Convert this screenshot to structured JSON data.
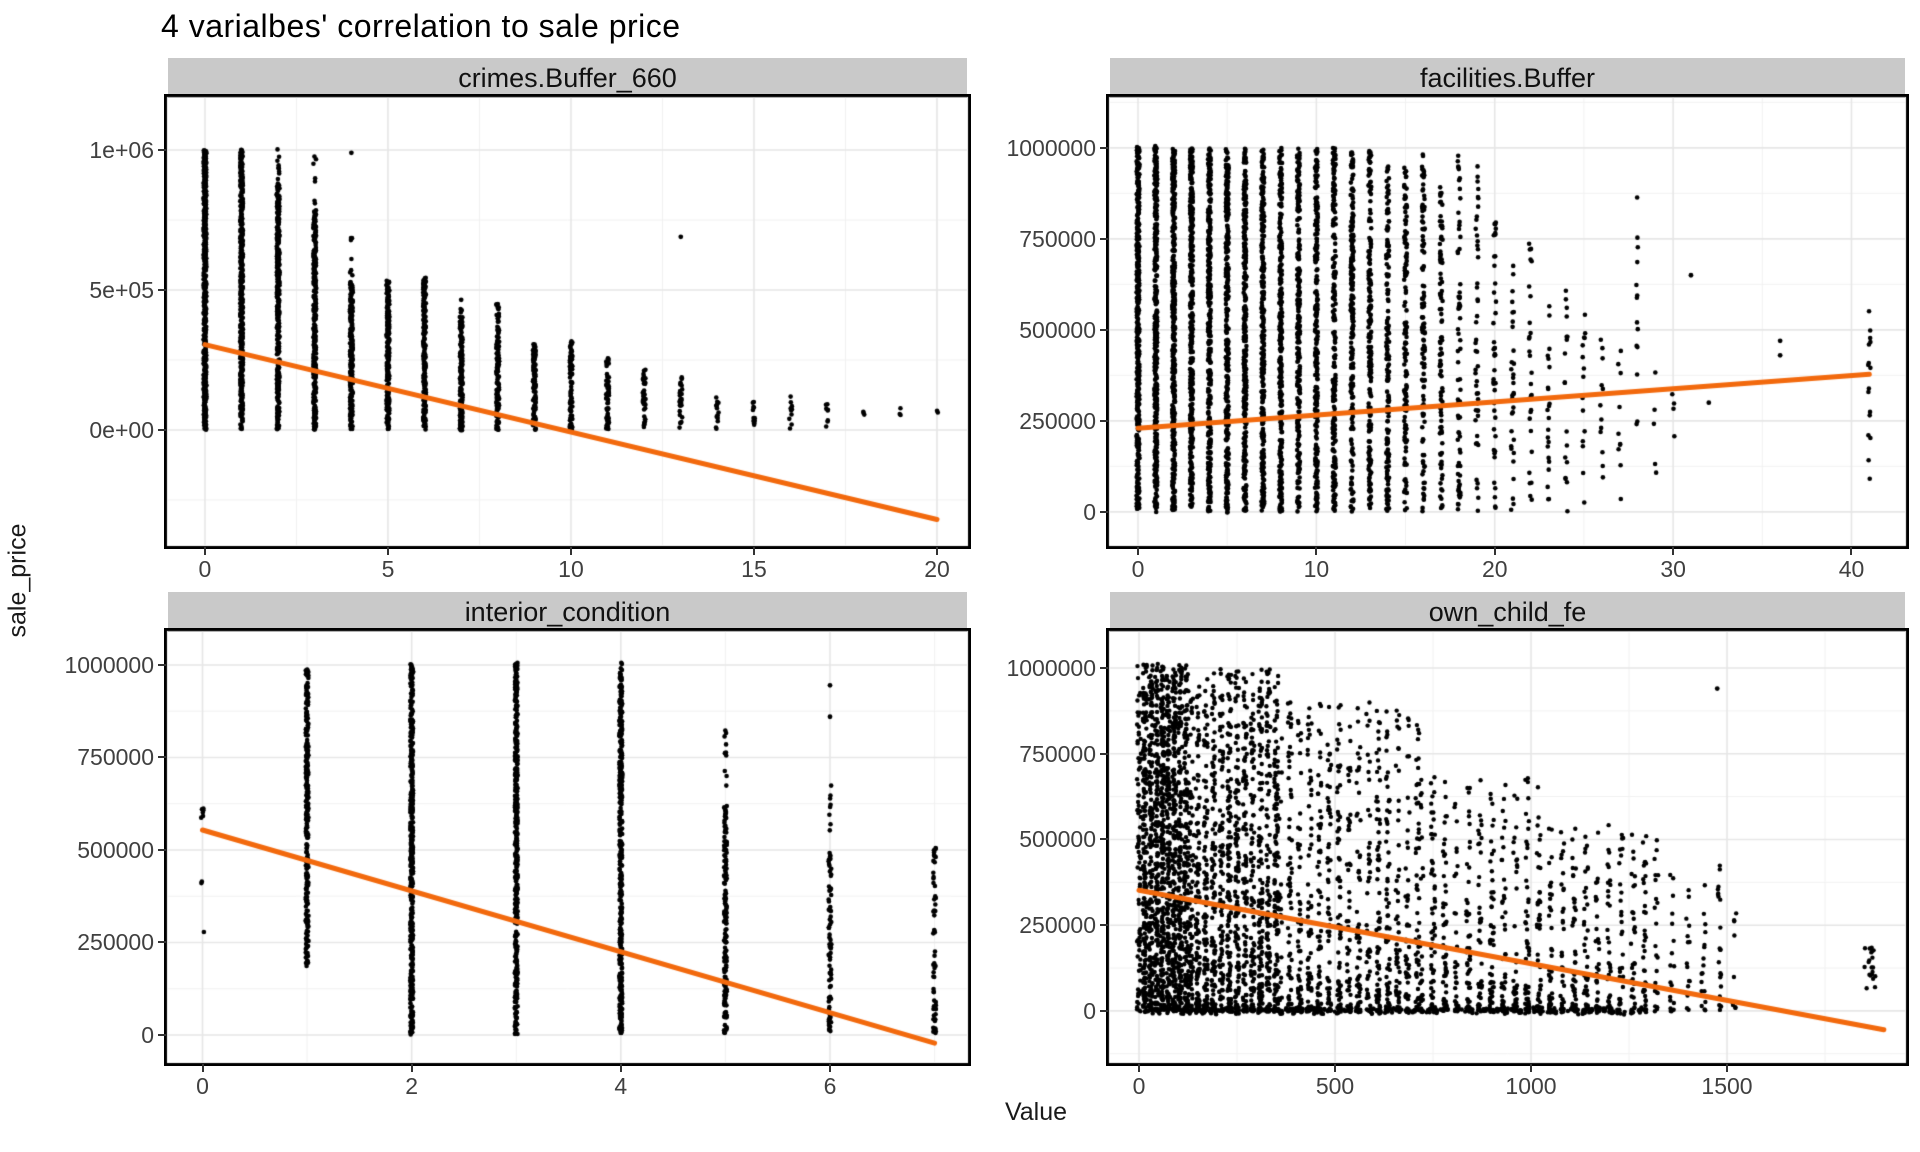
{
  "title": "4 varialbes' correlation to sale price",
  "axes": {
    "y_label": "sale_price",
    "x_label": "Value"
  },
  "colors": {
    "trend": "#F2690D",
    "point": "#000000",
    "strip_bg": "#C9C9C9",
    "grid_major": "#E6E6E6",
    "grid_minor": "#F1F1F1",
    "panel_border": "#000000",
    "tick_text": "#404040"
  },
  "chart_data": [
    {
      "type": "scatter",
      "title": "crimes.Buffer_660",
      "xlabel": "Value",
      "ylabel": "sale_price",
      "grid": true,
      "legend": "none",
      "x_ticks": {
        "values": [
          0,
          5,
          10,
          15,
          20
        ],
        "labels": [
          "0",
          "5",
          "10",
          "15",
          "20"
        ]
      },
      "y_ticks": {
        "values": [
          0,
          500000,
          1000000
        ],
        "labels": [
          "0e+00",
          "5e+05",
          "1e+06"
        ]
      },
      "xlim": [
        -1.01,
        20.82
      ],
      "ylim": [
        -411000,
        1186000
      ],
      "trend": {
        "x0": 0,
        "y0": 305000,
        "x1": 20,
        "y1": -320000
      },
      "columns": [
        [
          0,
          0,
          1000000,
          520
        ],
        [
          1,
          0,
          1000000,
          430
        ],
        [
          2,
          0,
          880000,
          340
        ],
        [
          2,
          880000,
          1005000,
          10
        ],
        [
          3,
          0,
          780000,
          290
        ],
        [
          3,
          780000,
          990000,
          8
        ],
        [
          4,
          0,
          530000,
          250
        ],
        [
          4,
          530000,
          700000,
          7
        ],
        [
          5,
          0,
          535000,
          215
        ],
        [
          6,
          0,
          545000,
          195
        ],
        [
          7,
          0,
          430000,
          165
        ],
        [
          8,
          0,
          450000,
          135
        ],
        [
          9,
          0,
          310000,
          115
        ],
        [
          10,
          0,
          315000,
          88
        ],
        [
          11,
          0,
          265000,
          58
        ],
        [
          12,
          0,
          215000,
          40
        ],
        [
          13,
          0,
          190000,
          28
        ],
        [
          14,
          0,
          115000,
          14
        ],
        [
          15,
          0,
          115000,
          12
        ],
        [
          16,
          0,
          130000,
          10
        ],
        [
          17,
          0,
          95000,
          8
        ],
        [
          18,
          45000,
          75000,
          3
        ],
        [
          19,
          45000,
          85000,
          3
        ],
        [
          20,
          55000,
          70000,
          2
        ]
      ],
      "extra_points": [
        [
          4,
          990000
        ],
        [
          7,
          465000
        ],
        [
          13,
          690000
        ]
      ]
    },
    {
      "type": "scatter",
      "title": "facilities.Buffer",
      "xlabel": "Value",
      "ylabel": "sale_price",
      "grid": true,
      "legend": "none",
      "x_ticks": {
        "values": [
          0,
          10,
          20,
          30,
          40
        ],
        "labels": [
          "0",
          "10",
          "20",
          "30",
          "40"
        ]
      },
      "y_ticks": {
        "values": [
          0,
          250000,
          500000,
          750000,
          1000000
        ],
        "labels": [
          "0",
          "250000",
          "500000",
          "750000",
          "1000000"
        ]
      },
      "xlim": [
        -1.57,
        43.0
      ],
      "ylim": [
        -91000,
        1137000
      ],
      "trend": {
        "x0": 0,
        "y0": 230000,
        "x1": 41,
        "y1": 378000
      },
      "columns": [
        [
          0,
          0,
          1005000,
          420
        ],
        [
          1,
          0,
          1005000,
          400
        ],
        [
          2,
          0,
          1000000,
          380
        ],
        [
          3,
          0,
          1000000,
          360
        ],
        [
          4,
          0,
          1000000,
          340
        ],
        [
          5,
          0,
          1000000,
          330
        ],
        [
          6,
          0,
          1000000,
          310
        ],
        [
          7,
          0,
          1000000,
          300
        ],
        [
          8,
          0,
          1000000,
          280
        ],
        [
          9,
          0,
          1000000,
          260
        ],
        [
          10,
          0,
          1000000,
          240
        ],
        [
          11,
          0,
          1000000,
          220
        ],
        [
          12,
          0,
          1000000,
          210
        ],
        [
          13,
          0,
          1000000,
          190
        ],
        [
          14,
          0,
          950000,
          160
        ],
        [
          15,
          0,
          950000,
          140
        ],
        [
          16,
          0,
          1000000,
          115
        ],
        [
          17,
          0,
          900000,
          95
        ],
        [
          18,
          0,
          1000000,
          70
        ],
        [
          19,
          0,
          950000,
          48
        ],
        [
          20,
          0,
          800000,
          42
        ],
        [
          21,
          0,
          700000,
          32
        ],
        [
          22,
          0,
          750000,
          28
        ],
        [
          23,
          0,
          600000,
          22
        ],
        [
          24,
          0,
          650000,
          18
        ],
        [
          25,
          0,
          550000,
          15
        ],
        [
          26,
          0,
          500000,
          12
        ],
        [
          27,
          0,
          450000,
          10
        ],
        [
          28,
          50000,
          900000,
          14
        ],
        [
          29,
          100000,
          400000,
          5
        ],
        [
          30,
          150000,
          350000,
          4
        ],
        [
          41,
          80000,
          560000,
          16
        ]
      ],
      "extra_points": [
        [
          31,
          650000
        ],
        [
          32,
          300000
        ],
        [
          36,
          430000
        ],
        [
          36,
          470000
        ]
      ]
    },
    {
      "type": "scatter",
      "title": "interior_condition",
      "xlabel": "Value",
      "ylabel": "sale_price",
      "grid": true,
      "legend": "none",
      "x_ticks": {
        "values": [
          0,
          2,
          4,
          6
        ],
        "labels": [
          "0",
          "2",
          "4",
          "6"
        ]
      },
      "y_ticks": {
        "values": [
          0,
          250000,
          500000,
          750000,
          1000000
        ],
        "labels": [
          "0",
          "250000",
          "500000",
          "750000",
          "1000000"
        ]
      },
      "xlim": [
        -0.33,
        7.31
      ],
      "ylim": [
        -73000,
        1089000
      ],
      "trend": {
        "x0": 0,
        "y0": 554000,
        "x1": 7,
        "y1": -22000
      },
      "columns": [
        [
          0,
          575000,
          625000,
          6
        ],
        [
          0,
          385000,
          420000,
          2
        ],
        [
          0,
          280000,
          280000,
          1
        ],
        [
          1,
          185000,
          995000,
          270
        ],
        [
          2,
          0,
          1005000,
          420
        ],
        [
          3,
          0,
          1005000,
          420
        ],
        [
          4,
          0,
          1005000,
          420
        ],
        [
          5,
          0,
          620000,
          160
        ],
        [
          5,
          620000,
          860000,
          10
        ],
        [
          6,
          0,
          500000,
          75
        ],
        [
          6,
          500000,
          680000,
          8
        ],
        [
          7,
          0,
          520000,
          60,
          1.4
        ]
      ],
      "extra_points": [
        [
          6,
          860000
        ],
        [
          6,
          945000
        ]
      ]
    },
    {
      "type": "scatter",
      "title": "own_child_fe",
      "xlabel": "Value",
      "ylabel": "sale_price",
      "grid": true,
      "legend": "none",
      "x_ticks": {
        "values": [
          0,
          500,
          1000,
          1500
        ],
        "labels": [
          "0",
          "500",
          "1000",
          "1500"
        ]
      },
      "y_ticks": {
        "values": [
          0,
          250000,
          500000,
          750000,
          1000000
        ],
        "labels": [
          "0",
          "250000",
          "500000",
          "750000",
          "1000000"
        ]
      },
      "xlim": [
        -74,
        1954
      ],
      "ylim": [
        -149000,
        1105000
      ],
      "trend": {
        "x0": 0,
        "y0": 352000,
        "x1": 1900,
        "y1": -55000
      },
      "clouds": [
        [
          0,
          130,
          0,
          1010000,
          1500,
          1.25,
          15
        ],
        [
          130,
          360,
          0,
          1000000,
          1300,
          1.7,
          20
        ],
        [
          360,
          720,
          0,
          900000,
          850,
          2.0,
          25
        ],
        [
          720,
          1050,
          0,
          680000,
          520,
          1.9,
          30
        ],
        [
          1050,
          1320,
          0,
          540000,
          300,
          1.8,
          30
        ],
        [
          1320,
          1520,
          0,
          430000,
          90,
          1.8,
          40
        ],
        [
          0,
          1300,
          -8000,
          8000,
          380,
          1,
          18
        ],
        [
          1855,
          1875,
          15000,
          195000,
          20,
          1,
          0
        ]
      ],
      "extra_points": [
        [
          1475,
          940000
        ]
      ]
    }
  ]
}
